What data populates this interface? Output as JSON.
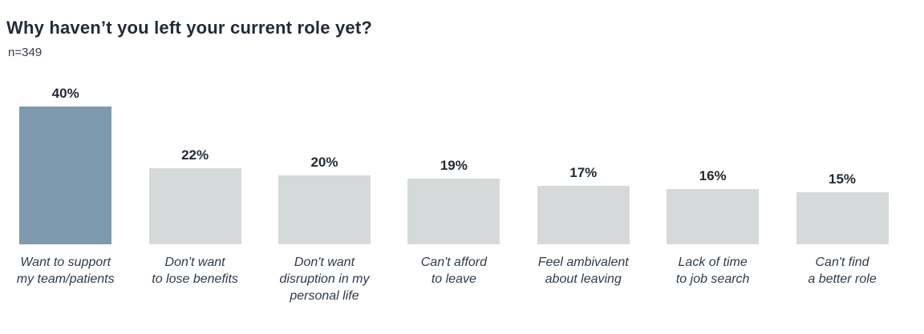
{
  "header": {
    "title": "Why haven’t you left your current role yet?",
    "sample_size": "n=349"
  },
  "chart_data": {
    "type": "bar",
    "title": "Why haven’t you left your current role yet?",
    "subtitle": "n=349",
    "categories": [
      "Want to support\nmy team/patients",
      "Don't want\nto lose benefits",
      "Don't want\ndisruption in my\npersonal life",
      "Can't afford\nto leave",
      "Feel ambivalent\nabout leaving",
      "Lack of time\nto job search",
      "Can't find\na better role"
    ],
    "values": [
      40,
      22,
      20,
      19,
      17,
      16,
      15
    ],
    "display_values": [
      "40%",
      "22%",
      "20%",
      "19%",
      "17%",
      "16%",
      "15%"
    ],
    "xlabel": "",
    "ylabel": "",
    "ylim": [
      0,
      45
    ],
    "grid": false,
    "legend": "none",
    "axis_lines": "none",
    "highlight_index": 0,
    "colors": {
      "highlight_bar": "#7d9aae",
      "default_bar": "#d6d9da",
      "title_text": "#232b38",
      "value_text": "#242b33",
      "category_text": "#2e3b49"
    }
  }
}
